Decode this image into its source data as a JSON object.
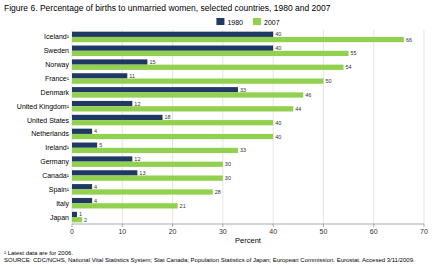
{
  "chart_data": {
    "type": "bar",
    "orientation": "horizontal",
    "title": "Figure 6.  Percentage of births to unmarried women, selected countries, 1980 and 2007",
    "categories": [
      "Iceland¹",
      "Sweden",
      "Norway",
      "France¹",
      "Denmark",
      "United Kingdom¹",
      "United States",
      "Netherlands",
      "Ireland¹",
      "Germany",
      "Canada¹",
      "Spain¹",
      "Italy",
      "Japan"
    ],
    "series": [
      {
        "name": "1980",
        "color": "#1f3864",
        "values": [
          40,
          40,
          15,
          11,
          33,
          12,
          18,
          4,
          5,
          12,
          13,
          4,
          4,
          1
        ]
      },
      {
        "name": "2007",
        "color": "#92d050",
        "values": [
          66,
          55,
          54,
          50,
          46,
          44,
          40,
          40,
          33,
          30,
          30,
          28,
          21,
          2
        ]
      }
    ],
    "xlabel": "Percent",
    "xlim": [
      0,
      70
    ],
    "xticks": [
      0,
      10,
      20,
      30,
      40,
      50,
      60,
      70
    ],
    "grid": true,
    "data_labels": true,
    "legend": "top",
    "annotations": [
      "¹ Latest data are for 2006.",
      "SOURCE: CDC/NCHS, National Vital Statistics System; Stat Canada; Population Statistics of Japan; European Commission.  Eurostat.  Accesed 3/11/2009."
    ]
  }
}
